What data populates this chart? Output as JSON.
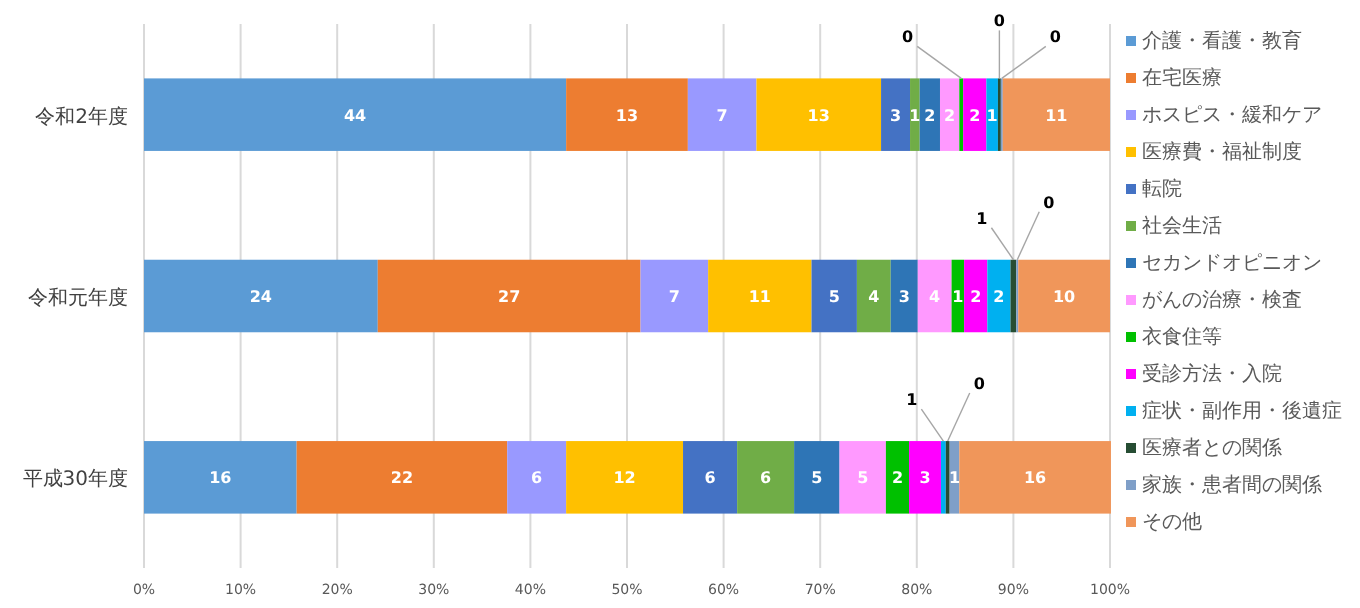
{
  "chart_data": {
    "type": "bar",
    "orientation": "horizontal",
    "stacked": true,
    "categories": [
      "令和2年度",
      "令和元年度",
      "平成30年度"
    ],
    "xlim": [
      0,
      100
    ],
    "xticks": [
      {
        "value": 0,
        "label": "0%"
      },
      {
        "value": 10,
        "label": "10%"
      },
      {
        "value": 20,
        "label": "20%"
      },
      {
        "value": 30,
        "label": "30%"
      },
      {
        "value": 40,
        "label": "40%"
      },
      {
        "value": 50,
        "label": "50%"
      },
      {
        "value": 60,
        "label": "60%"
      },
      {
        "value": 70,
        "label": "70%"
      },
      {
        "value": 80,
        "label": "80%"
      },
      {
        "value": 90,
        "label": "90%"
      },
      {
        "value": 100,
        "label": "100%"
      }
    ],
    "grid": "x",
    "legend": "right",
    "series": [
      {
        "name": "介護・看護・教育",
        "color": "#5b9bd5",
        "values": [
          43.7,
          24.2,
          15.8
        ],
        "value_labels": [
          "44",
          "24",
          "16"
        ]
      },
      {
        "name": "在宅医療",
        "color": "#ed7d31",
        "values": [
          12.6,
          27.2,
          21.8
        ],
        "value_labels": [
          "13",
          "27",
          "22"
        ]
      },
      {
        "name": "ホスピス・緩和ケア",
        "color": "#9999ff",
        "values": [
          7.1,
          7.0,
          6.1
        ],
        "value_labels": [
          "7",
          "7",
          "6"
        ]
      },
      {
        "name": "医療費・福祉制度",
        "color": "#ffc000",
        "values": [
          12.9,
          10.7,
          12.1
        ],
        "value_labels": [
          "13",
          "11",
          "12"
        ]
      },
      {
        "name": "転院",
        "color": "#4472c4",
        "values": [
          3.0,
          4.7,
          5.6
        ],
        "value_labels": [
          "3",
          "5",
          "6"
        ]
      },
      {
        "name": "社会生活",
        "color": "#70ad47",
        "values": [
          1.0,
          3.5,
          5.9
        ],
        "value_labels": [
          "1",
          "4",
          "6"
        ]
      },
      {
        "name": "セカンドオピニオン",
        "color": "#2e75b6",
        "values": [
          2.1,
          2.8,
          4.7
        ],
        "value_labels": [
          "2",
          "3",
          "5"
        ]
      },
      {
        "name": "がんの治療・検査",
        "color": "#ff99ff",
        "values": [
          2.0,
          3.5,
          4.8
        ],
        "value_labels": [
          "2",
          "4",
          "5"
        ]
      },
      {
        "name": "衣食住等",
        "color": "#00c000",
        "values": [
          0.4,
          1.3,
          2.4
        ],
        "value_labels": [
          "0",
          "1",
          "2"
        ]
      },
      {
        "name": "受診方法・入院",
        "color": "#ff00ff",
        "values": [
          2.4,
          2.4,
          3.3
        ],
        "value_labels": [
          "2",
          "2",
          "3"
        ]
      },
      {
        "name": "症状・副作用・後遺症",
        "color": "#00b0f0",
        "values": [
          1.2,
          2.4,
          0.5
        ],
        "value_labels": [
          "1",
          "2",
          "1"
        ]
      },
      {
        "name": "医療者との関係",
        "color": "#264d33",
        "values": [
          0.3,
          0.6,
          0.4
        ],
        "value_labels": [
          "0",
          "1",
          "0"
        ]
      },
      {
        "name": "家族・患者間の関係",
        "color": "#7f9fc8",
        "values": [
          0.2,
          0.2,
          1.0
        ],
        "value_labels": [
          "0",
          "0",
          "1"
        ]
      },
      {
        "name": "その他",
        "color": "#f0965a",
        "values": [
          11.1,
          9.5,
          15.7
        ],
        "value_labels": [
          "11",
          "10",
          "16"
        ]
      }
    ]
  }
}
